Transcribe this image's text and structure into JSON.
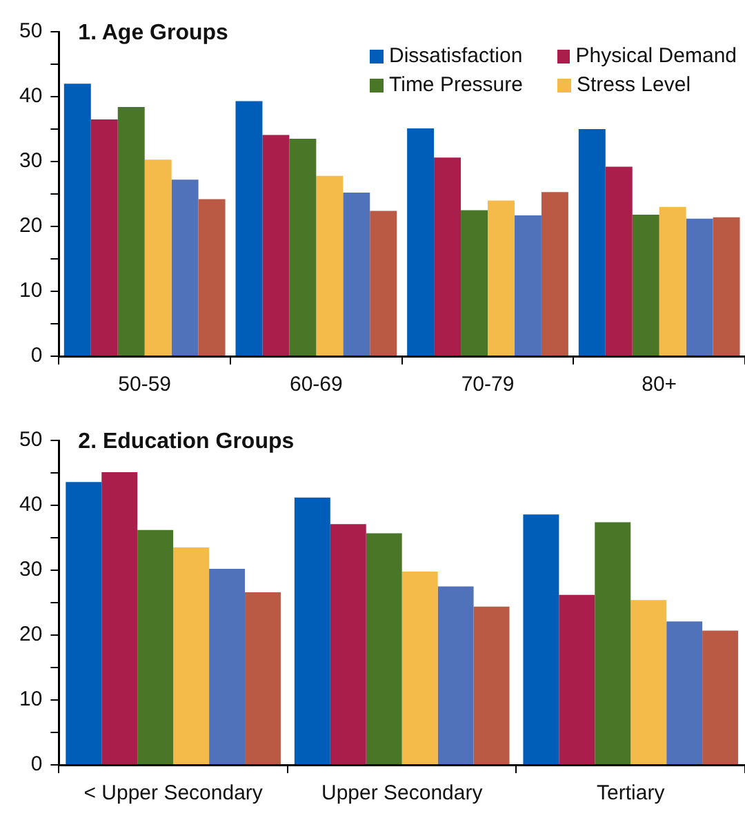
{
  "chart_data": [
    {
      "type": "bar",
      "title": "1. Age Groups",
      "categories": [
        "50-59",
        "60-69",
        "70-79",
        "80+"
      ],
      "ylim": [
        0,
        50
      ],
      "yticks": [
        0,
        {
          "value": 5,
          "label": null
        },
        10,
        {
          "value": 15,
          "label": null
        },
        20,
        {
          "value": 25,
          "label": null
        },
        30,
        {
          "value": 35,
          "label": null
        },
        40,
        {
          "value": 45,
          "label": null
        },
        50
      ],
      "grid": false,
      "legend": "top right",
      "series": [
        {
          "name": "Dissatisfaction",
          "color": "#005eb8",
          "values": [
            42,
            39.3,
            35.1,
            35
          ]
        },
        {
          "name": "Physical Demand",
          "color": "#a91e4b",
          "values": [
            36.5,
            34.1,
            30.6,
            29.2
          ]
        },
        {
          "name": "Time Pressure",
          "color": "#4a7628",
          "values": [
            38.4,
            33.5,
            22.5,
            21.8
          ]
        },
        {
          "name": "Stress Level",
          "color": "#f5bb4a",
          "values": [
            30.3,
            27.8,
            24,
            23
          ]
        },
        {
          "color": "#5072ba",
          "values": [
            27.2,
            25.2,
            21.7,
            21.2
          ]
        },
        {
          "color": "#bb5a44",
          "values": [
            24.2,
            22.4,
            25.3,
            21.4
          ]
        }
      ]
    },
    {
      "type": "bar",
      "title": "2. Education Groups",
      "categories": [
        "< Upper Secondary",
        "Upper Secondary",
        "Tertiary"
      ],
      "ylim": [
        0,
        50
      ],
      "yticks": [
        0,
        {
          "value": 5,
          "label": null
        },
        10,
        {
          "value": 15,
          "label": null
        },
        20,
        {
          "value": 25,
          "label": null
        },
        30,
        {
          "value": 35,
          "label": null
        },
        40,
        {
          "value": 45,
          "label": null
        },
        50
      ],
      "grid": false,
      "series": [
        {
          "color": "#005eb8",
          "values": [
            43.6,
            41.2,
            38.6
          ]
        },
        {
          "color": "#a91e4b",
          "values": [
            45.1,
            37.1,
            26.2
          ]
        },
        {
          "color": "#4a7628",
          "values": [
            36.2,
            35.7,
            37.4
          ]
        },
        {
          "color": "#f5bb4a",
          "values": [
            33.5,
            29.8,
            25.4
          ]
        },
        {
          "color": "#5072ba",
          "values": [
            30.2,
            27.5,
            22.1
          ]
        },
        {
          "color": "#bb5a44",
          "values": [
            26.6,
            24.4,
            20.7
          ]
        }
      ]
    }
  ]
}
